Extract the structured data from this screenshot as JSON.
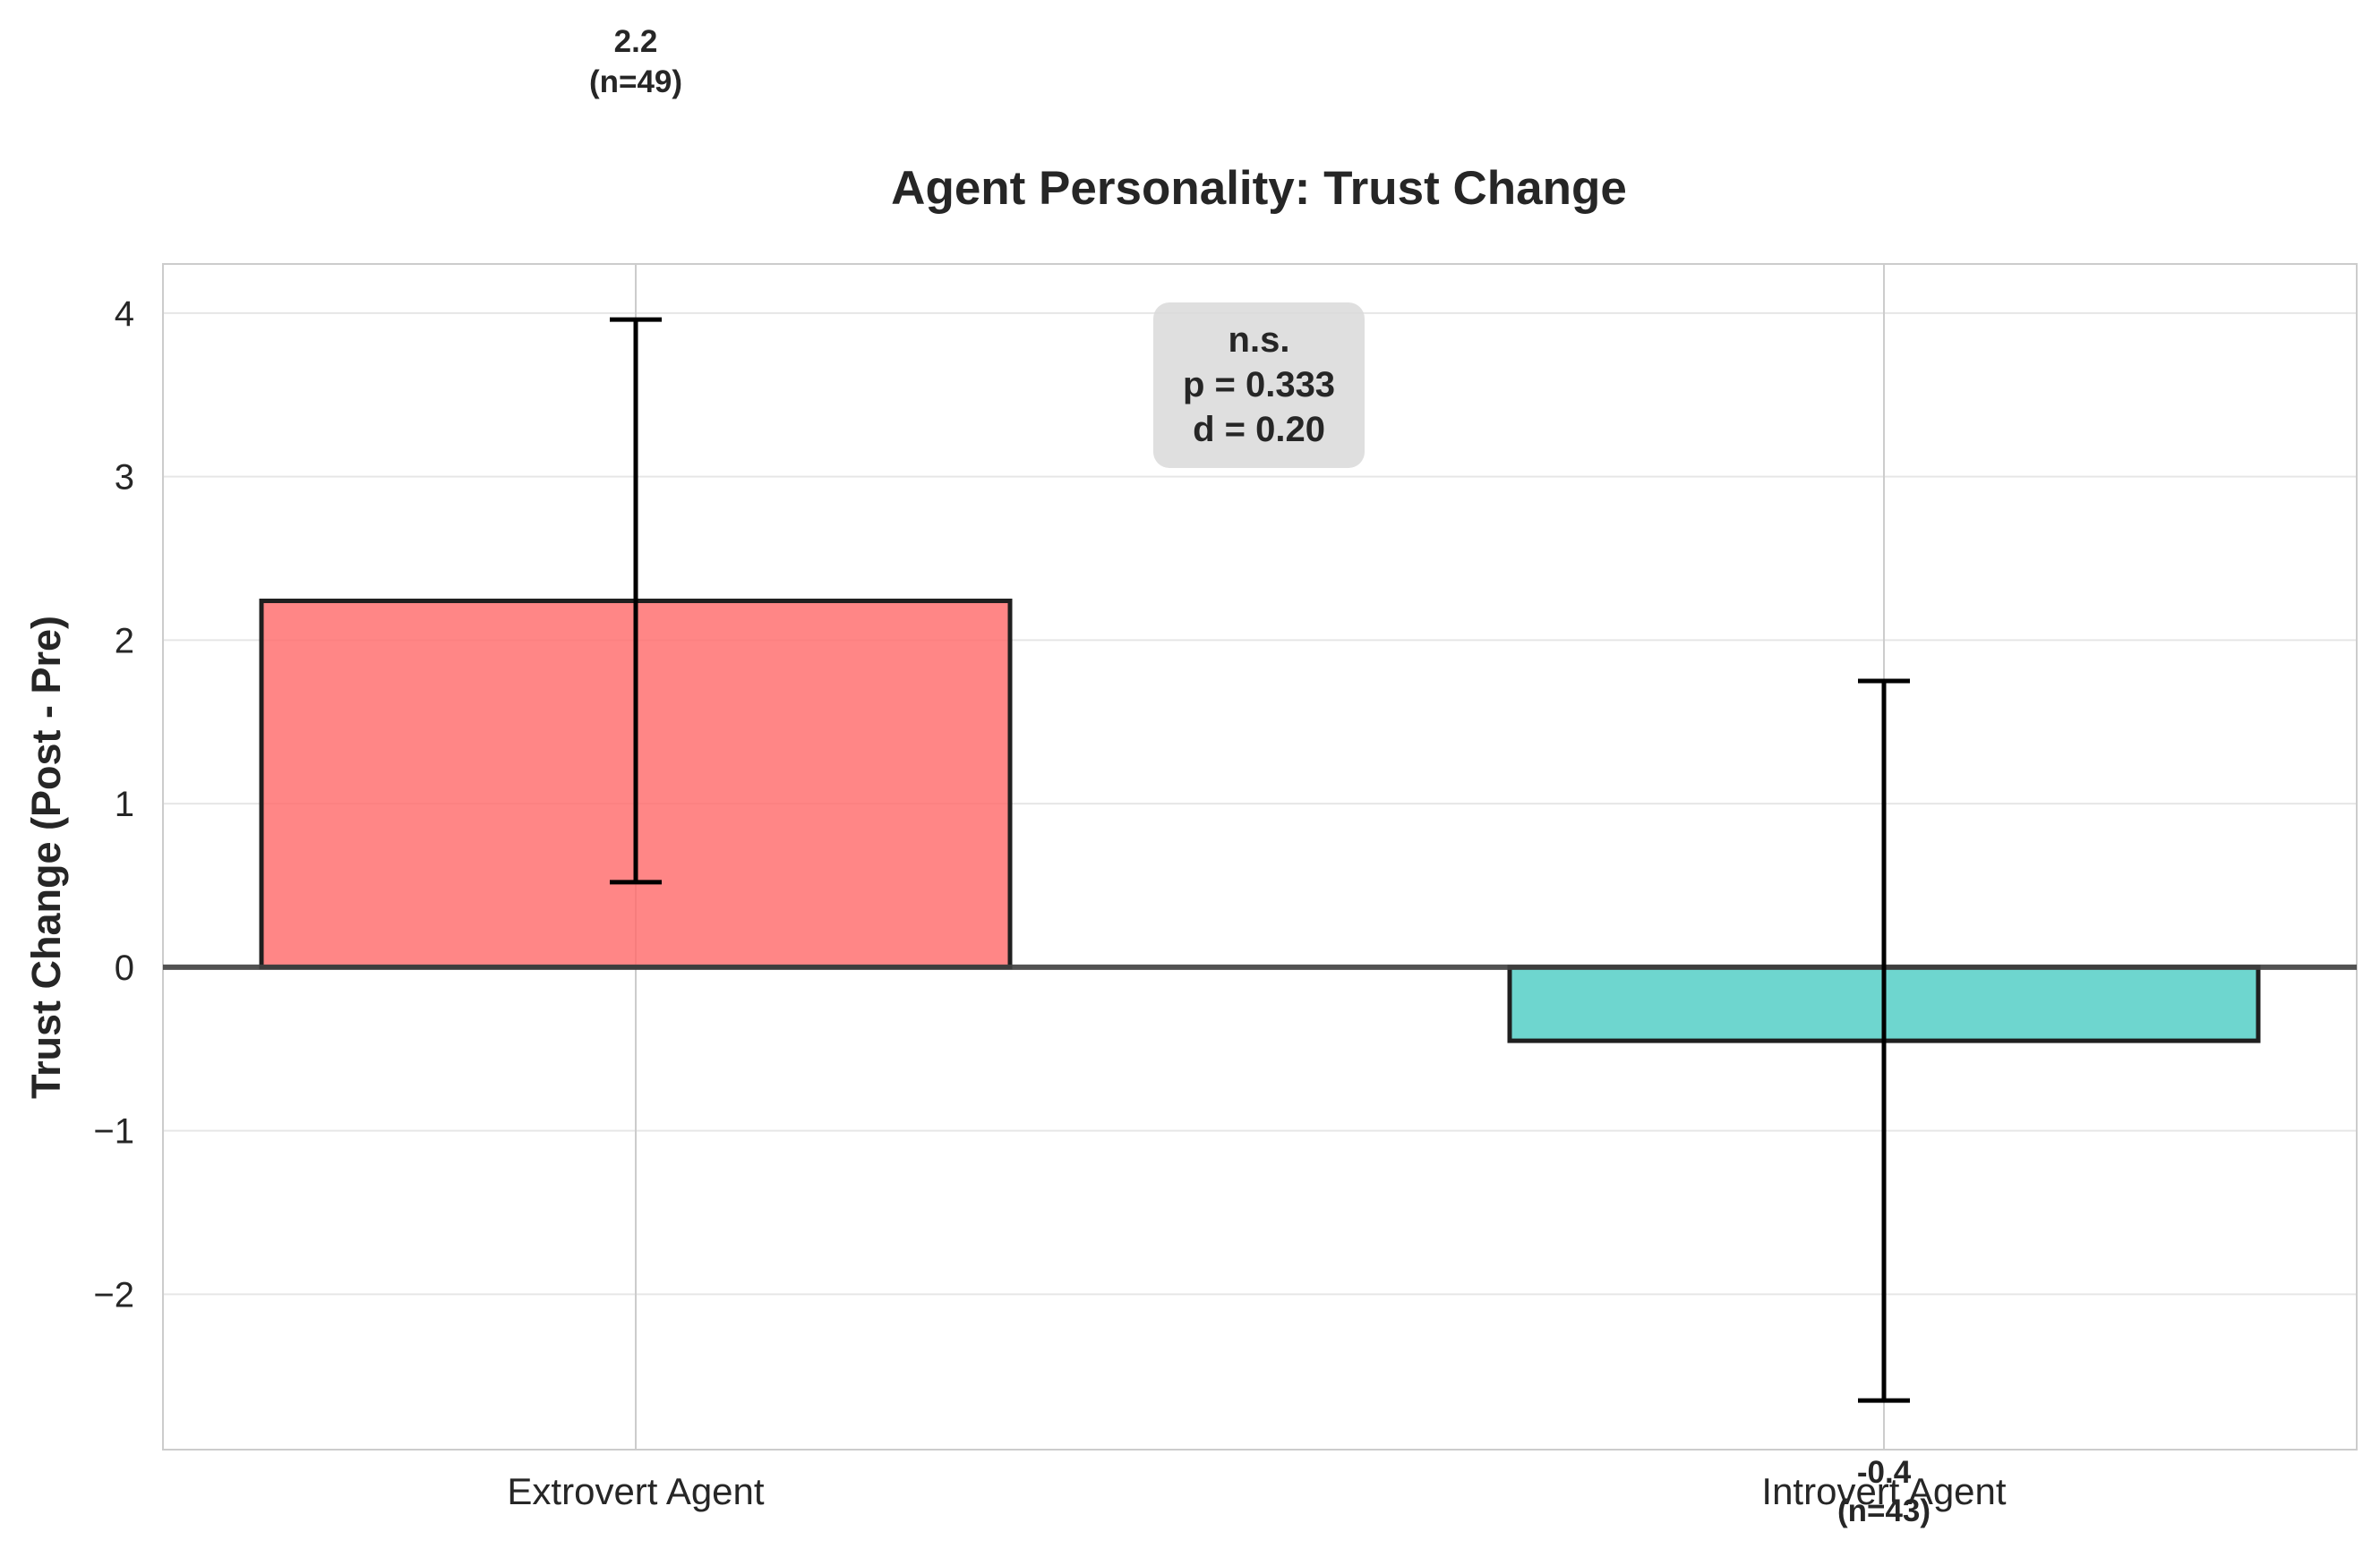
{
  "chart_data": {
    "type": "bar",
    "title": "Agent Personality: Trust Change",
    "xlabel": "",
    "ylabel": "Trust Change (Post - Pre)",
    "categories": [
      "Extrovert Agent",
      "Introvert Agent"
    ],
    "values": [
      2.24,
      -0.45
    ],
    "error_low": [
      0.52,
      -2.65
    ],
    "error_high": [
      3.96,
      1.75
    ],
    "bar_labels": [
      {
        "value": "2.2",
        "n": "(n=49)"
      },
      {
        "value": "-0.4",
        "n": "(n=43)"
      }
    ],
    "colors": [
      "#ff6b6b",
      "#4ecdc4"
    ],
    "ylim": [
      -2.95,
      4.3
    ],
    "yticks": [
      4,
      3,
      2,
      1,
      0,
      -1,
      -2
    ],
    "ytick_labels": [
      "4",
      "3",
      "2",
      "1",
      "0",
      "−1",
      "−2"
    ],
    "grid": true,
    "annotation": {
      "line1": "n.s.",
      "line2": "p = 0.333",
      "line3": "d = 0.20"
    }
  }
}
